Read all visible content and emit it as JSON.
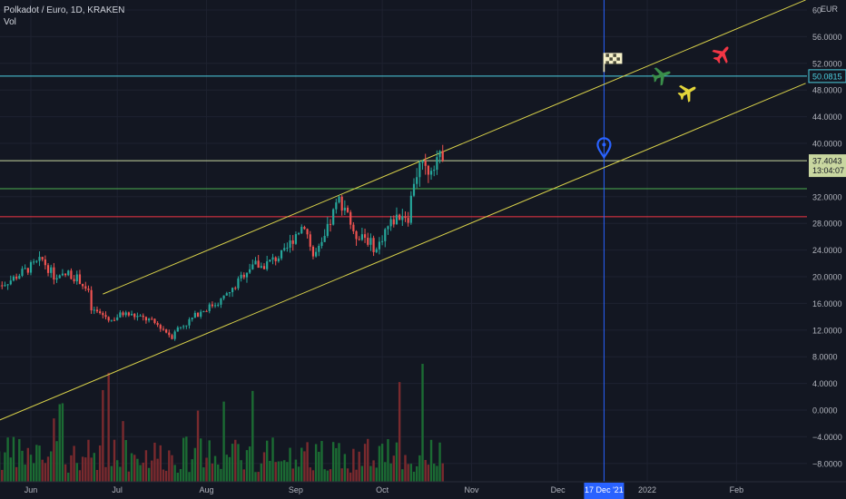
{
  "header": {
    "title": "Polkadot / Euro, 1D, KRAKEN",
    "sub": "Vol"
  },
  "chart_data": {
    "type": "candlestick",
    "y_currency": "EUR",
    "y_ticks": [
      {
        "v": 60,
        "label": "60.0000"
      },
      {
        "v": 56,
        "label": "56.0000"
      },
      {
        "v": 52,
        "label": "52.0000"
      },
      {
        "v": 48,
        "label": "48.0000"
      },
      {
        "v": 44,
        "label": "44.0000"
      },
      {
        "v": 40,
        "label": "40.0000"
      },
      {
        "v": 32,
        "label": "32.0000"
      },
      {
        "v": 28,
        "label": "28.0000"
      },
      {
        "v": 24,
        "label": "24.0000"
      },
      {
        "v": 20,
        "label": "20.0000"
      },
      {
        "v": 16,
        "label": "16.0000"
      },
      {
        "v": 12,
        "label": "12.0000"
      },
      {
        "v": 8,
        "label": "8.0000"
      },
      {
        "v": 4,
        "label": "4.0000"
      },
      {
        "v": 0,
        "label": "0.0000"
      },
      {
        "v": -4,
        "label": "−4.0000"
      },
      {
        "v": -8,
        "label": "−8.0000"
      }
    ],
    "x_ticks": [
      {
        "date": "2021-06-01",
        "label": "Jun"
      },
      {
        "date": "2021-07-01",
        "label": "Jul"
      },
      {
        "date": "2021-08-01",
        "label": "Aug"
      },
      {
        "date": "2021-09-01",
        "label": "Sep"
      },
      {
        "date": "2021-10-01",
        "label": "Oct"
      },
      {
        "date": "2021-11-01",
        "label": "Nov"
      },
      {
        "date": "2021-12-01",
        "label": "Dec"
      },
      {
        "date": "2022-01-01",
        "label": "2022"
      },
      {
        "date": "2022-02-01",
        "label": "Feb"
      }
    ],
    "series_close": [
      {
        "date": "2021-05-20",
        "close": 18.5
      },
      {
        "date": "2021-05-25",
        "close": 19.5
      },
      {
        "date": "2021-06-01",
        "close": 21.5
      },
      {
        "date": "2021-06-05",
        "close": 22.5
      },
      {
        "date": "2021-06-10",
        "close": 19.5
      },
      {
        "date": "2021-06-14",
        "close": 20.5
      },
      {
        "date": "2021-06-18",
        "close": 19.5
      },
      {
        "date": "2021-06-21",
        "close": 17.5
      },
      {
        "date": "2021-06-22",
        "close": 15.0
      },
      {
        "date": "2021-06-25",
        "close": 14.5
      },
      {
        "date": "2021-06-29",
        "close": 13.5
      },
      {
        "date": "2021-07-03",
        "close": 14.5
      },
      {
        "date": "2021-07-08",
        "close": 14.0
      },
      {
        "date": "2021-07-12",
        "close": 13.5
      },
      {
        "date": "2021-07-16",
        "close": 12.5
      },
      {
        "date": "2021-07-20",
        "close": 11.0
      },
      {
        "date": "2021-07-21",
        "close": 12.0
      },
      {
        "date": "2021-07-25",
        "close": 13.0
      },
      {
        "date": "2021-07-29",
        "close": 14.5
      },
      {
        "date": "2021-08-02",
        "close": 15.5
      },
      {
        "date": "2021-08-06",
        "close": 16.5
      },
      {
        "date": "2021-08-10",
        "close": 18.0
      },
      {
        "date": "2021-08-14",
        "close": 20.5
      },
      {
        "date": "2021-08-17",
        "close": 22.0
      },
      {
        "date": "2021-08-20",
        "close": 21.5
      },
      {
        "date": "2021-08-24",
        "close": 22.5
      },
      {
        "date": "2021-08-28",
        "close": 23.5
      },
      {
        "date": "2021-09-01",
        "close": 26.5
      },
      {
        "date": "2021-09-04",
        "close": 28.0
      },
      {
        "date": "2021-09-07",
        "close": 23.0
      },
      {
        "date": "2021-09-10",
        "close": 24.5
      },
      {
        "date": "2021-09-14",
        "close": 29.5
      },
      {
        "date": "2021-09-16",
        "close": 31.5
      },
      {
        "date": "2021-09-19",
        "close": 30.0
      },
      {
        "date": "2021-09-21",
        "close": 26.0
      },
      {
        "date": "2021-09-24",
        "close": 26.5
      },
      {
        "date": "2021-09-27",
        "close": 25.0
      },
      {
        "date": "2021-09-29",
        "close": 24.0
      },
      {
        "date": "2021-10-02",
        "close": 27.0
      },
      {
        "date": "2021-10-05",
        "close": 28.5
      },
      {
        "date": "2021-10-08",
        "close": 29.5
      },
      {
        "date": "2021-10-10",
        "close": 29.0
      },
      {
        "date": "2021-10-12",
        "close": 34.5
      },
      {
        "date": "2021-10-14",
        "close": 36.5
      },
      {
        "date": "2021-10-17",
        "close": 36.0
      },
      {
        "date": "2021-10-20",
        "close": 38.0
      },
      {
        "date": "2021-10-22",
        "close": 37.4
      }
    ],
    "volume_note": "volume bars shown without scale",
    "horizontal_lines": [
      {
        "value": 50.0815,
        "color": "#4dd0e1",
        "label": "50.0815"
      },
      {
        "value": 37.4043,
        "color": "#c9d7a0",
        "label": "37.4043"
      },
      {
        "value": 33.2,
        "color": "#4caf50"
      },
      {
        "value": 29.0,
        "color": "#f23645"
      }
    ],
    "vertical_line": {
      "date": "2021-12-17",
      "label": "17 Dec '21",
      "color": "#2962ff"
    },
    "channel": {
      "color": "#d9d24a",
      "upper": [
        {
          "date": "2021-06-26",
          "value": 17.4
        },
        {
          "date": "2022-02-25",
          "value": 61.5
        }
      ],
      "lower": [
        {
          "date": "2021-05-20",
          "value": -1.7
        },
        {
          "date": "2022-02-25",
          "value": 49.0
        }
      ]
    },
    "last_price": {
      "value": "37.4043",
      "countdown": "13:04:07"
    },
    "icons": [
      {
        "name": "flag-icon",
        "date": "2021-12-17",
        "value": 52.2,
        "color": "#f5f0c8"
      },
      {
        "name": "location-pin-icon",
        "date": "2021-12-17",
        "value": 39.0,
        "color": "#2962ff"
      },
      {
        "name": "airplane-icon",
        "date": "2022-01-06",
        "value": 50.2,
        "color": "#3a8e4a"
      },
      {
        "name": "airplane-icon",
        "date": "2022-01-15",
        "value": 47.7,
        "color": "#e3d53a"
      },
      {
        "name": "airplane-icon",
        "date": "2022-01-27",
        "value": 53.4,
        "color": "#f23645"
      }
    ],
    "colors": {
      "up": "#26a69a",
      "down": "#ef5350",
      "vol_up": "#1b6b33",
      "vol_down": "#7a2a2e",
      "text": "#b2b5be"
    }
  }
}
